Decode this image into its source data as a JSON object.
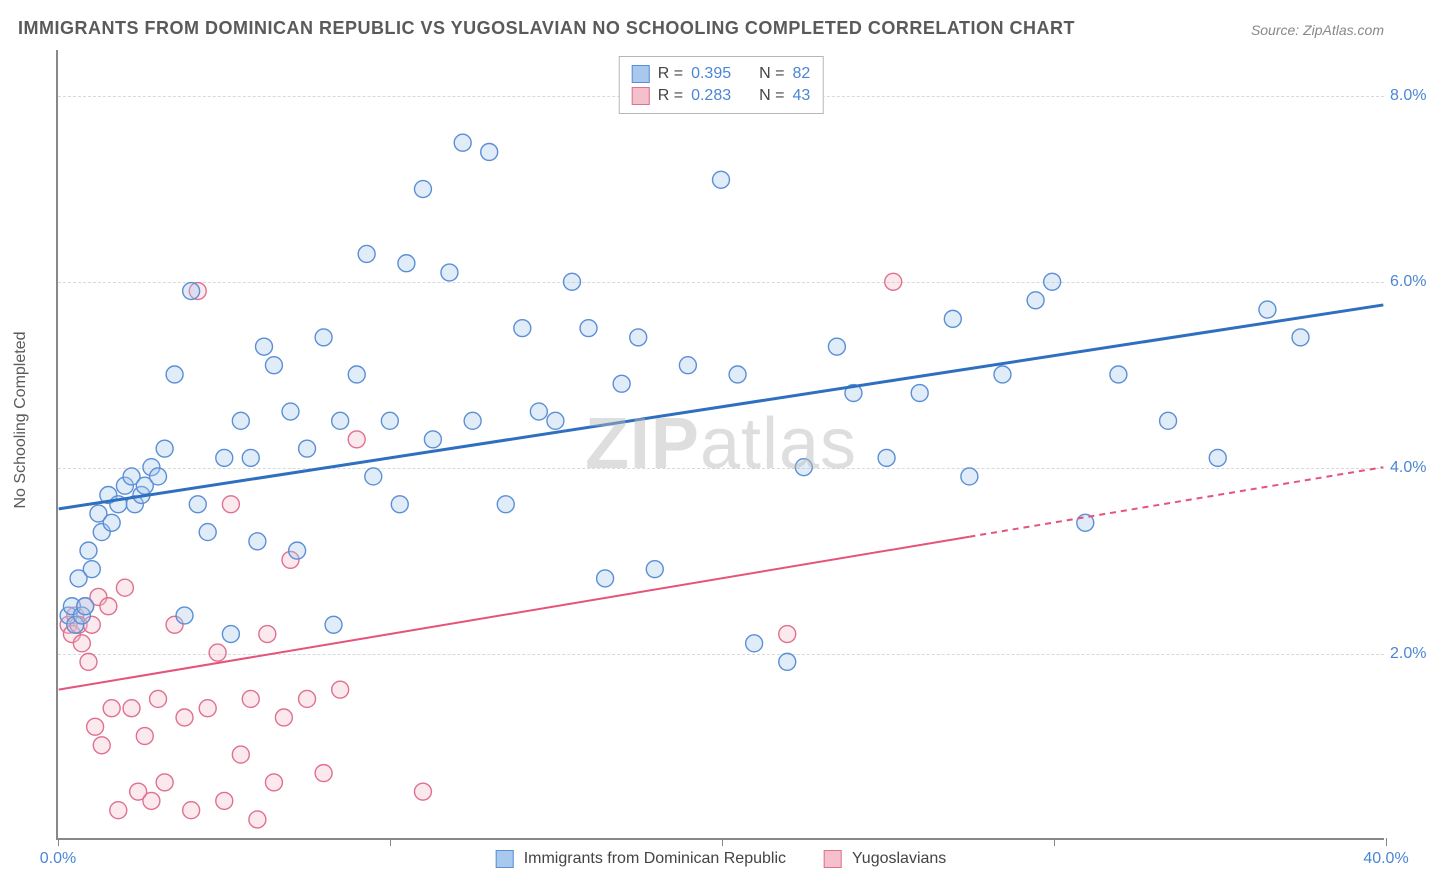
{
  "title": "IMMIGRANTS FROM DOMINICAN REPUBLIC VS YUGOSLAVIAN NO SCHOOLING COMPLETED CORRELATION CHART",
  "source": "Source: ZipAtlas.com",
  "watermark": "ZIPatlas",
  "ylabel": "No Schooling Completed",
  "chart": {
    "type": "scatter",
    "xlim": [
      0,
      40
    ],
    "ylim": [
      0,
      8.5
    ],
    "x_ticks": [
      0,
      10,
      20,
      30,
      40
    ],
    "x_tick_labels": [
      "0.0%",
      "",
      "",
      "",
      "40.0%"
    ],
    "y_grid": [
      2,
      4,
      6,
      8
    ],
    "y_grid_labels": [
      "2.0%",
      "4.0%",
      "6.0%",
      "8.0%"
    ],
    "background_color": "#ffffff",
    "grid_color": "#d9d9d9",
    "axis_color": "#888888",
    "tick_label_color": "#4a86d4",
    "marker_radius": 8.5,
    "series": [
      {
        "name": "Immigrants from Dominican Republic",
        "fill": "#a8c8ee",
        "stroke": "#5a8fd6",
        "stats": {
          "R": "0.395",
          "N": "82"
        },
        "trend": {
          "x1": 0,
          "y1": 3.55,
          "x2": 40,
          "y2": 5.75,
          "color": "#2f6fc0",
          "width": 3
        },
        "points": [
          [
            0.3,
            2.4
          ],
          [
            0.4,
            2.5
          ],
          [
            0.5,
            2.3
          ],
          [
            0.6,
            2.8
          ],
          [
            0.7,
            2.4
          ],
          [
            0.8,
            2.5
          ],
          [
            0.9,
            3.1
          ],
          [
            1.0,
            2.9
          ],
          [
            1.2,
            3.5
          ],
          [
            1.3,
            3.3
          ],
          [
            1.5,
            3.7
          ],
          [
            1.6,
            3.4
          ],
          [
            1.8,
            3.6
          ],
          [
            2.0,
            3.8
          ],
          [
            2.2,
            3.9
          ],
          [
            2.3,
            3.6
          ],
          [
            2.5,
            3.7
          ],
          [
            2.6,
            3.8
          ],
          [
            2.8,
            4.0
          ],
          [
            3.0,
            3.9
          ],
          [
            3.2,
            4.2
          ],
          [
            3.5,
            5.0
          ],
          [
            3.8,
            2.4
          ],
          [
            4.0,
            5.9
          ],
          [
            4.2,
            3.6
          ],
          [
            4.5,
            3.3
          ],
          [
            5.0,
            4.1
          ],
          [
            5.2,
            2.2
          ],
          [
            5.5,
            4.5
          ],
          [
            5.8,
            4.1
          ],
          [
            6.0,
            3.2
          ],
          [
            6.2,
            5.3
          ],
          [
            6.5,
            5.1
          ],
          [
            7.0,
            4.6
          ],
          [
            7.2,
            3.1
          ],
          [
            7.5,
            4.2
          ],
          [
            8.0,
            5.4
          ],
          [
            8.3,
            2.3
          ],
          [
            8.5,
            4.5
          ],
          [
            9.0,
            5.0
          ],
          [
            9.3,
            6.3
          ],
          [
            9.5,
            3.9
          ],
          [
            10.0,
            4.5
          ],
          [
            10.3,
            3.6
          ],
          [
            10.5,
            6.2
          ],
          [
            11.0,
            7.0
          ],
          [
            11.3,
            4.3
          ],
          [
            11.8,
            6.1
          ],
          [
            12.2,
            7.5
          ],
          [
            12.5,
            4.5
          ],
          [
            13.0,
            7.4
          ],
          [
            13.5,
            3.6
          ],
          [
            14.0,
            5.5
          ],
          [
            14.5,
            4.6
          ],
          [
            15.0,
            4.5
          ],
          [
            15.5,
            6.0
          ],
          [
            16.0,
            5.5
          ],
          [
            16.5,
            2.8
          ],
          [
            17.0,
            4.9
          ],
          [
            17.5,
            5.4
          ],
          [
            18.0,
            2.9
          ],
          [
            19.0,
            5.1
          ],
          [
            20.0,
            7.1
          ],
          [
            20.5,
            5.0
          ],
          [
            21.0,
            2.1
          ],
          [
            22.0,
            1.9
          ],
          [
            22.5,
            4.0
          ],
          [
            23.5,
            5.3
          ],
          [
            24.0,
            4.8
          ],
          [
            25.0,
            4.1
          ],
          [
            26.0,
            4.8
          ],
          [
            27.0,
            5.6
          ],
          [
            27.5,
            3.9
          ],
          [
            28.5,
            5.0
          ],
          [
            29.5,
            5.8
          ],
          [
            30.0,
            6.0
          ],
          [
            31.0,
            3.4
          ],
          [
            32.0,
            5.0
          ],
          [
            33.5,
            4.5
          ],
          [
            35.0,
            4.1
          ],
          [
            36.5,
            5.7
          ],
          [
            37.5,
            5.4
          ]
        ]
      },
      {
        "name": "Yugoslavians",
        "fill": "#f4c0cc",
        "stroke": "#e0708f",
        "stats": {
          "R": "0.283",
          "N": "43"
        },
        "trend": {
          "x1": 0,
          "y1": 1.6,
          "x2": 40,
          "y2": 4.0,
          "color": "#e5537a",
          "width": 2,
          "dash_from_x": 27.5
        },
        "points": [
          [
            0.3,
            2.3
          ],
          [
            0.4,
            2.2
          ],
          [
            0.5,
            2.4
          ],
          [
            0.6,
            2.3
          ],
          [
            0.7,
            2.1
          ],
          [
            0.8,
            2.5
          ],
          [
            0.9,
            1.9
          ],
          [
            1.0,
            2.3
          ],
          [
            1.1,
            1.2
          ],
          [
            1.2,
            2.6
          ],
          [
            1.3,
            1.0
          ],
          [
            1.5,
            2.5
          ],
          [
            1.6,
            1.4
          ],
          [
            1.8,
            0.3
          ],
          [
            2.0,
            2.7
          ],
          [
            2.2,
            1.4
          ],
          [
            2.4,
            0.5
          ],
          [
            2.6,
            1.1
          ],
          [
            2.8,
            0.4
          ],
          [
            3.0,
            1.5
          ],
          [
            3.2,
            0.6
          ],
          [
            3.5,
            2.3
          ],
          [
            3.8,
            1.3
          ],
          [
            4.0,
            0.3
          ],
          [
            4.2,
            5.9
          ],
          [
            4.5,
            1.4
          ],
          [
            4.8,
            2.0
          ],
          [
            5.0,
            0.4
          ],
          [
            5.2,
            3.6
          ],
          [
            5.5,
            0.9
          ],
          [
            5.8,
            1.5
          ],
          [
            6.0,
            0.2
          ],
          [
            6.3,
            2.2
          ],
          [
            6.5,
            0.6
          ],
          [
            6.8,
            1.3
          ],
          [
            7.0,
            3.0
          ],
          [
            7.5,
            1.5
          ],
          [
            8.0,
            0.7
          ],
          [
            8.5,
            1.6
          ],
          [
            9.0,
            4.3
          ],
          [
            11.0,
            0.5
          ],
          [
            22.0,
            2.2
          ],
          [
            25.2,
            6.0
          ]
        ]
      }
    ]
  },
  "stats_legend_labels": {
    "R": "R =",
    "N": "N ="
  },
  "legend_series_labels": [
    "Immigrants from Dominican Republic",
    "Yugoslavians"
  ]
}
